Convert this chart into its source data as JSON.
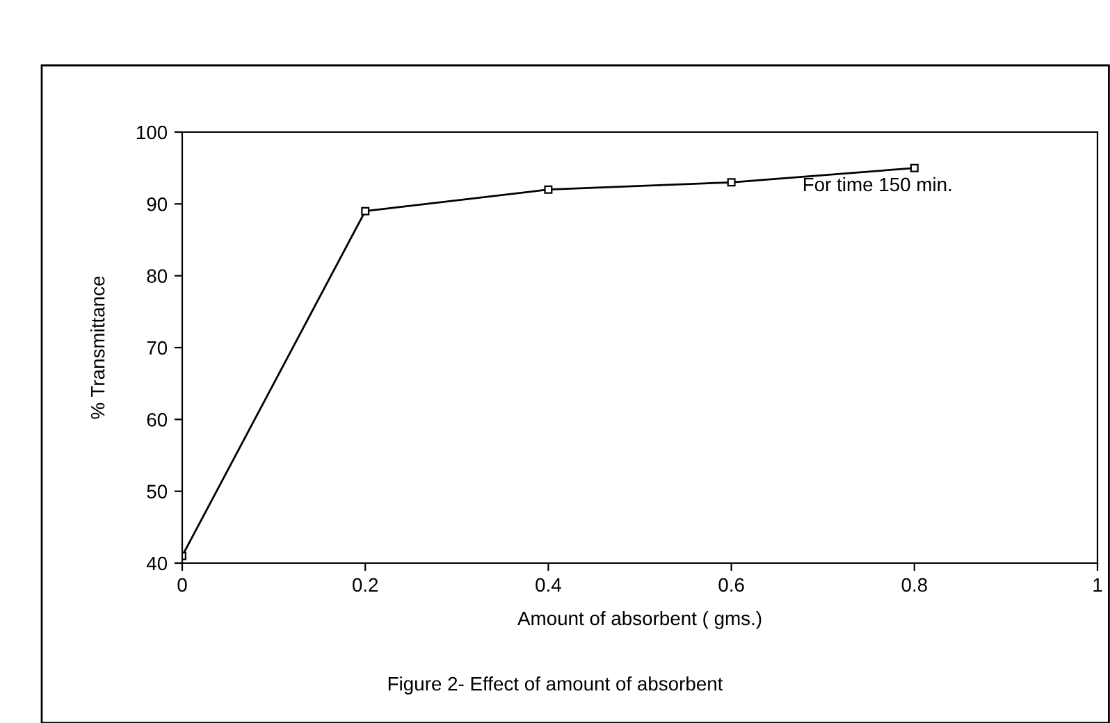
{
  "chart_data": {
    "type": "line",
    "xlabel": "Amount of absorbent ( gms.)",
    "ylabel": "% Transmittance",
    "x": [
      0,
      0.2,
      0.4,
      0.6,
      0.8
    ],
    "series": [
      {
        "color": "#000000",
        "values": [
          41,
          89,
          92,
          93,
          95
        ]
      }
    ],
    "xlim": [
      0,
      1
    ],
    "xticks": [
      0,
      0.2,
      0.4,
      0.6,
      0.8,
      1
    ],
    "ylim": [
      40,
      100
    ],
    "yticks": [
      40,
      50,
      60,
      70,
      80,
      90,
      100
    ],
    "marker": "square",
    "line_style": "solid",
    "grid": false,
    "legend": false,
    "annotations": [
      {
        "text": "For time 150 min.",
        "x": 0.8,
        "y": 95
      },
      "Figure 2- Effect of amount of absorbent"
    ]
  }
}
